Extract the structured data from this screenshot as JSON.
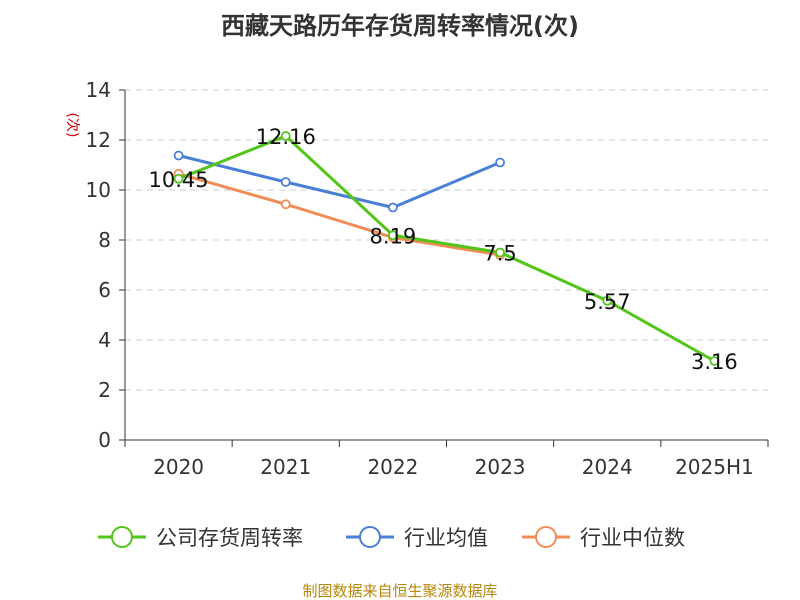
{
  "chart_data": {
    "type": "line",
    "title": "西藏天路历年存货周转率情况(次)",
    "unit": "(次)",
    "categories": [
      "2020",
      "2021",
      "2022",
      "2023",
      "2024",
      "2025H1"
    ],
    "ylim": [
      0,
      14
    ],
    "yticks": [
      "0",
      "2",
      "4",
      "6",
      "8",
      "10",
      "12",
      "14"
    ],
    "grid": true,
    "legend_position": "bottom",
    "series": [
      {
        "name": "公司存货周转率",
        "color": "#52c41a",
        "values": [
          10.45,
          12.16,
          8.19,
          7.5,
          5.57,
          3.16
        ],
        "labels": [
          "10.45",
          "12.16",
          "8.19",
          "7.5",
          "5.57",
          "3.16"
        ]
      },
      {
        "name": "行业均值",
        "color": "#4a7fd6",
        "values": [
          11.38,
          10.32,
          9.3,
          11.1,
          null,
          null
        ]
      },
      {
        "name": "行业中位数",
        "color": "#f08c56",
        "values": [
          10.65,
          9.43,
          8.1,
          7.4,
          null,
          null
        ]
      }
    ],
    "source": "制图数据来自恒生聚源数据库"
  }
}
